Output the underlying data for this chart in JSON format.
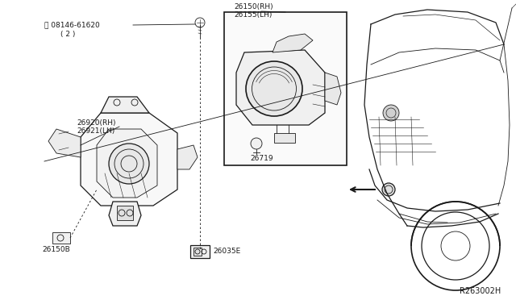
{
  "bg_color": "#ffffff",
  "line_color": "#1a1a1a",
  "diagram_ref": "R263002H",
  "label_08146": "B08146-61620\n(2)",
  "label_26920": "26920(RH)\n26921(LH)",
  "label_26150": "26150(RH)\n26155(LH)",
  "label_26719": "26719",
  "label_26150B": "26150B",
  "label_26035E": "26035E",
  "fig_w": 6.4,
  "fig_h": 3.72,
  "dpi": 100
}
